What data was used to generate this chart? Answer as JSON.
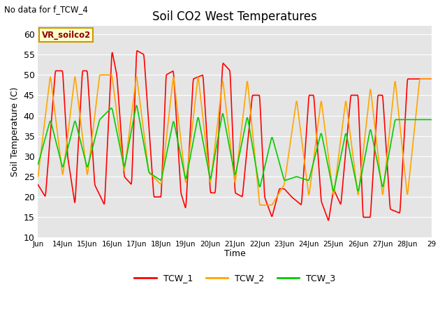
{
  "title": "Soil CO2 West Temperatures",
  "xlabel": "Time",
  "ylabel": "Soil Temperature (C)",
  "no_data_text": "No data for f_TCW_4",
  "annotation_text": "VR_soilco2",
  "ylim": [
    10,
    62
  ],
  "yticks": [
    10,
    15,
    20,
    25,
    30,
    35,
    40,
    45,
    50,
    55,
    60
  ],
  "bg_color": "#e5e5e5",
  "colors": {
    "TCW_1": "#ff0000",
    "TCW_2": "#ffa500",
    "TCW_3": "#00cc00"
  },
  "x_tick_labels": [
    "Jun",
    "14Jun",
    "15Jun",
    "16Jun",
    "17Jun",
    "18Jun",
    "19Jun",
    "20Jun",
    "21Jun",
    "22Jun",
    "23Jun",
    "24Jun",
    "25Jun",
    "26Jun",
    "27Jun",
    "28Jun",
    "29"
  ],
  "TCW_1_x": [
    13.0,
    13.3,
    13.7,
    14.0,
    14.2,
    14.5,
    14.8,
    15.0,
    15.3,
    15.7,
    16.0,
    16.2,
    16.5,
    16.8,
    17.0,
    17.3,
    17.7,
    18.0,
    18.2,
    18.5,
    18.8,
    19.0,
    19.3,
    19.7,
    20.0,
    20.2,
    20.5,
    20.8,
    21.0,
    21.3,
    21.7,
    22.0,
    22.2,
    22.5,
    22.8,
    23.0,
    23.3,
    23.7,
    24.0,
    24.2,
    24.5,
    24.8,
    25.0,
    25.3,
    25.7,
    26.0,
    26.2,
    26.5,
    26.8,
    27.0,
    27.3,
    27.7,
    28.0,
    28.3
  ],
  "TCW_1_y": [
    23,
    20,
    51,
    51,
    30,
    18,
    51,
    51,
    23,
    18,
    56,
    50,
    25,
    23,
    56,
    55,
    20,
    20,
    50,
    51,
    21,
    17,
    49,
    50,
    21,
    21,
    53,
    51,
    21,
    20,
    45,
    45,
    20,
    15,
    22,
    22,
    20,
    18,
    45,
    45,
    19,
    14,
    22,
    18,
    45,
    45,
    15,
    15,
    45,
    45,
    17,
    16,
    49,
    49
  ],
  "TCW_2_x": [
    13.0,
    13.5,
    14.0,
    14.5,
    15.0,
    15.5,
    16.0,
    16.5,
    17.0,
    17.5,
    18.0,
    18.5,
    19.0,
    19.5,
    20.0,
    20.5,
    21.0,
    21.5,
    22.0,
    22.5,
    23.0,
    23.5,
    24.0,
    24.5,
    25.0,
    25.5,
    26.0,
    26.5,
    27.0,
    27.5,
    28.0,
    28.5
  ],
  "TCW_2_y": [
    25,
    50,
    25,
    50,
    25,
    50,
    50,
    26,
    50,
    26,
    23,
    50,
    23,
    50,
    23,
    49,
    23,
    49,
    18,
    18,
    23,
    44,
    20,
    44,
    20,
    44,
    20,
    47,
    20,
    49,
    20,
    49
  ],
  "TCW_3_x": [
    13.0,
    13.5,
    14.0,
    14.5,
    15.0,
    15.5,
    16.0,
    16.5,
    17.0,
    17.5,
    18.0,
    18.5,
    19.0,
    19.5,
    20.0,
    20.5,
    21.0,
    21.5,
    22.0,
    22.5,
    23.0,
    23.5,
    24.0,
    24.5,
    25.0,
    25.5,
    26.0,
    26.5,
    27.0,
    27.5,
    28.0,
    28.5
  ],
  "TCW_3_y": [
    28,
    39,
    27,
    39,
    27,
    39,
    42,
    27,
    43,
    26,
    24,
    39,
    24,
    40,
    24,
    41,
    25,
    40,
    22,
    35,
    24,
    25,
    24,
    36,
    21,
    36,
    21,
    37,
    22,
    39,
    39,
    39
  ]
}
